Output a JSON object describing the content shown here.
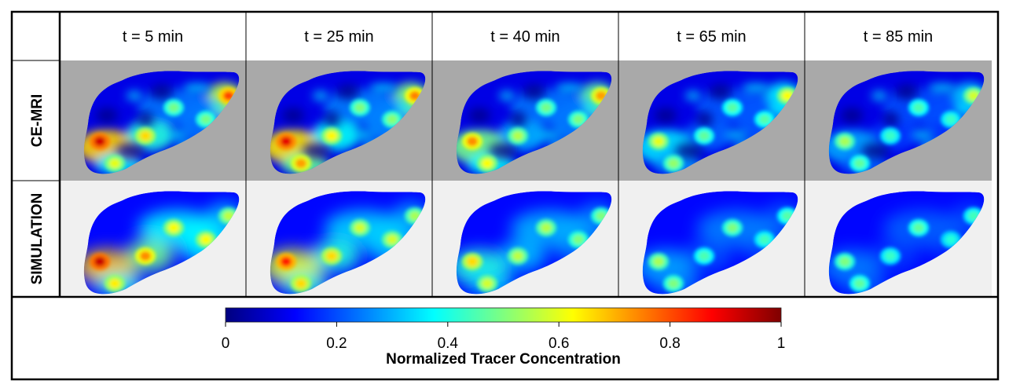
{
  "columns": [
    "t = 5 min",
    "t = 25 min",
    "t = 40 min",
    "t = 65 min",
    "t = 85 min"
  ],
  "rows": [
    {
      "label": "CE-MRI",
      "background": "#a9a9a9",
      "hotspots": [
        [
          0.92,
          0.6,
          0.66,
          0.49,
          0.81,
          0.49
        ],
        [
          0.9,
          0.72,
          0.63,
          0.51,
          0.75,
          0.5
        ],
        [
          0.74,
          0.62,
          0.55,
          0.5,
          0.72,
          0.49
        ],
        [
          0.6,
          0.52,
          0.47,
          0.46,
          0.62,
          0.46
        ],
        [
          0.54,
          0.47,
          0.43,
          0.43,
          0.58,
          0.45
        ]
      ],
      "texture": 1
    },
    {
      "label": "SIMULATION",
      "background": "#f0f0f0",
      "hotspots": [
        [
          0.93,
          0.64,
          0.74,
          0.62,
          0.56,
          0.62
        ],
        [
          0.85,
          0.66,
          0.66,
          0.58,
          0.54,
          0.58
        ],
        [
          0.66,
          0.58,
          0.56,
          0.5,
          0.5,
          0.55
        ],
        [
          0.54,
          0.5,
          0.45,
          0.44,
          0.46,
          0.5
        ],
        [
          0.5,
          0.47,
          0.43,
          0.41,
          0.44,
          0.47
        ]
      ],
      "texture": 0
    }
  ],
  "colorbar": {
    "title": "Normalized Tracer Concentration",
    "ticks": [
      "0",
      "0.2",
      "0.4",
      "0.6",
      "0.8",
      "1"
    ],
    "tick_values": [
      0,
      0.2,
      0.4,
      0.6,
      0.8,
      1
    ],
    "min": 0,
    "max": 1,
    "colormap": [
      "#00007f",
      "#0000ff",
      "#007fff",
      "#00ffff",
      "#7fff7f",
      "#ffff00",
      "#ff7f00",
      "#ff0000",
      "#7f0000"
    ]
  }
}
